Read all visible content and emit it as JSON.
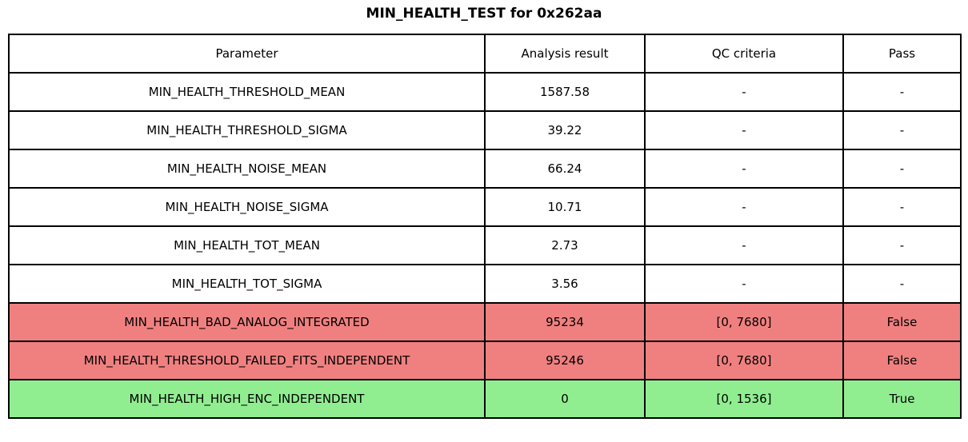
{
  "title": "MIN_HEALTH_TEST for 0x262aa",
  "colors": {
    "fail_bg": "#F08080",
    "pass_bg": "#90EE90",
    "border": "#000000",
    "text": "#000000"
  },
  "chart_data": {
    "type": "table",
    "title": "MIN_HEALTH_TEST for 0x262aa",
    "columns": [
      "Parameter",
      "Analysis result",
      "QC criteria",
      "Pass"
    ],
    "rows": [
      {
        "status": "normal",
        "cells": [
          "MIN_HEALTH_THRESHOLD_MEAN",
          "1587.58",
          "-",
          "-"
        ]
      },
      {
        "status": "normal",
        "cells": [
          "MIN_HEALTH_THRESHOLD_SIGMA",
          "39.22",
          "-",
          "-"
        ]
      },
      {
        "status": "normal",
        "cells": [
          "MIN_HEALTH_NOISE_MEAN",
          "66.24",
          "-",
          "-"
        ]
      },
      {
        "status": "normal",
        "cells": [
          "MIN_HEALTH_NOISE_SIGMA",
          "10.71",
          "-",
          "-"
        ]
      },
      {
        "status": "normal",
        "cells": [
          "MIN_HEALTH_TOT_MEAN",
          "2.73",
          "-",
          "-"
        ]
      },
      {
        "status": "normal",
        "cells": [
          "MIN_HEALTH_TOT_SIGMA",
          "3.56",
          "-",
          "-"
        ]
      },
      {
        "status": "fail",
        "cells": [
          "MIN_HEALTH_BAD_ANALOG_INTEGRATED",
          "95234",
          "[0, 7680]",
          "False"
        ]
      },
      {
        "status": "fail",
        "cells": [
          "MIN_HEALTH_THRESHOLD_FAILED_FITS_INDEPENDENT",
          "95246",
          "[0, 7680]",
          "False"
        ]
      },
      {
        "status": "pass",
        "cells": [
          "MIN_HEALTH_HIGH_ENC_INDEPENDENT",
          "0",
          "[0, 1536]",
          "True"
        ]
      }
    ]
  }
}
